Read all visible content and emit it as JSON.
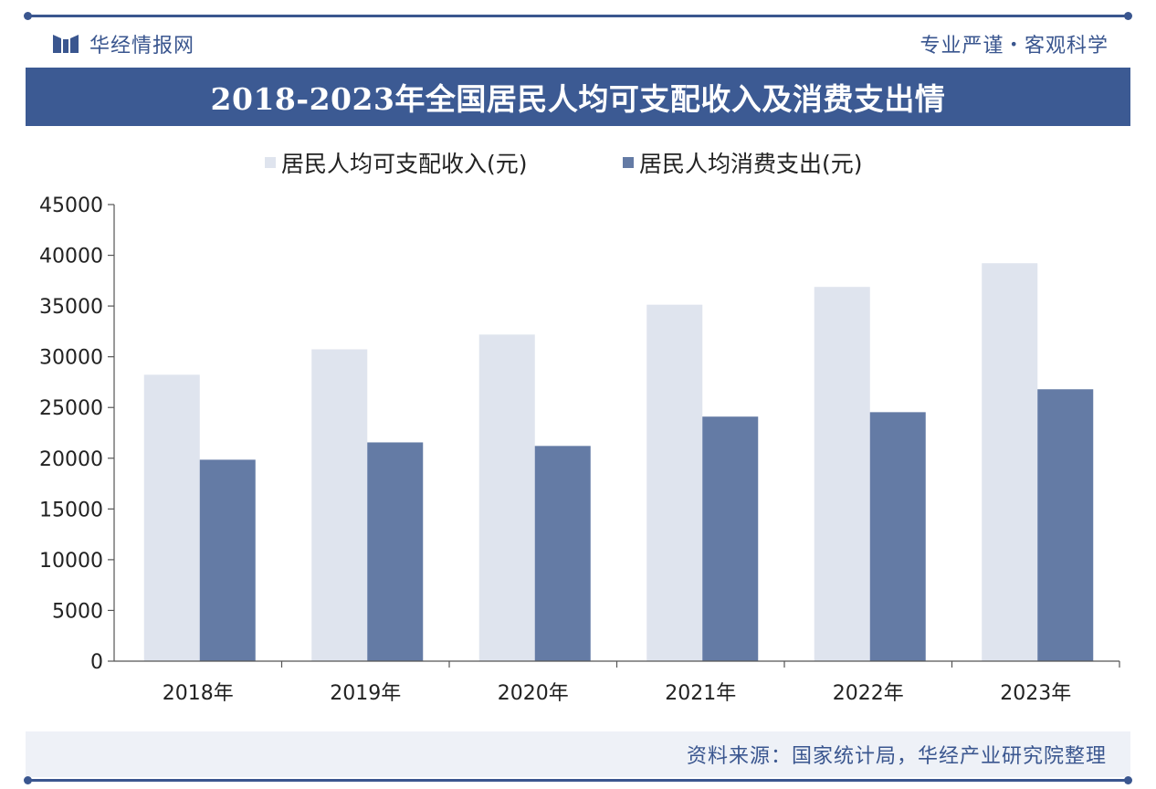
{
  "header": {
    "brand": "华经情报网",
    "slogan_left": "专业严谨",
    "slogan_dot": "•",
    "slogan_right": "客观科学"
  },
  "title": "2018-2023年全国居民人均可支配收入及消费支出情",
  "source": "资料来源：国家统计局，华经产业研究院整理",
  "colors": {
    "brand": "#3a568f",
    "income": "#dfe4ee",
    "consumption": "#647ba5"
  },
  "chart_data": {
    "type": "bar",
    "categories": [
      "2018年",
      "2019年",
      "2020年",
      "2021年",
      "2022年",
      "2023年"
    ],
    "series": [
      {
        "name": "居民人均可支配收入(元)",
        "values": [
          28228,
          30733,
          32189,
          35128,
          36883,
          39218
        ]
      },
      {
        "name": "居民人均消费支出(元)",
        "values": [
          19853,
          21559,
          21210,
          24100,
          24538,
          26796
        ]
      }
    ],
    "ylim": [
      0,
      45000
    ],
    "yticks": [
      "0",
      "5000",
      "10000",
      "15000",
      "20000",
      "25000",
      "30000",
      "35000",
      "40000",
      "45000"
    ],
    "xlabel": "",
    "ylabel": "",
    "grid": false,
    "legend": "top"
  }
}
